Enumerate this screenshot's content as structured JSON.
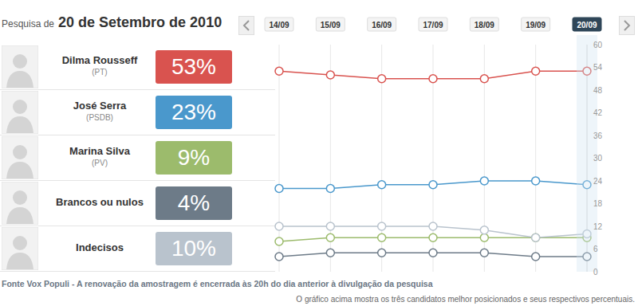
{
  "chart_data": {
    "type": "line",
    "title": "20 de Setembro de 2010",
    "annotations": [
      "Pesquisa de",
      "Fonte Vox Populi - A renovação da amostragem é encerrada às 20h do dia anterior à divulgação da pesquisa",
      "O gráfico acima mostra os três candidatos melhor posicionados e seus respectivos percentuais."
    ],
    "categories": [
      "14/09",
      "15/09",
      "16/09",
      "17/09",
      "18/09",
      "19/09",
      "20/09"
    ],
    "series": [
      {
        "name": "Dilma Rousseff",
        "party": "(PT)",
        "color": "#d9534f",
        "marker": "circle",
        "values": [
          53,
          52,
          51,
          51,
          51,
          53,
          53
        ],
        "value_labels": [
          null,
          null,
          null,
          null,
          null,
          null,
          "53%"
        ]
      },
      {
        "name": "José Serra",
        "party": "(PSDB)",
        "color": "#4a98cc",
        "marker": "circle",
        "values": [
          22,
          22,
          23,
          23,
          24,
          24,
          23
        ],
        "value_labels": [
          null,
          null,
          null,
          null,
          null,
          null,
          "23%"
        ]
      },
      {
        "name": "Marina Silva",
        "party": "(PV)",
        "color": "#9cbb6c",
        "marker": "circle",
        "values": [
          8,
          9,
          9,
          9,
          9,
          9,
          9
        ],
        "value_labels": [
          null,
          null,
          null,
          null,
          null,
          null,
          "9%"
        ]
      },
      {
        "name": "Brancos ou nulos",
        "color": "#6d7b88",
        "marker": "circle",
        "values": [
          4,
          5,
          5,
          5,
          5,
          4,
          4
        ],
        "value_labels": [
          null,
          null,
          null,
          null,
          null,
          null,
          "4%"
        ]
      },
      {
        "name": "Indecisos",
        "color": "#b9c3cd",
        "marker": "circle",
        "values": [
          12,
          12,
          12,
          12,
          11,
          9,
          10
        ],
        "value_labels": [
          null,
          null,
          null,
          null,
          null,
          null,
          "10%"
        ]
      }
    ],
    "ylim": [
      0,
      60
    ],
    "yticks": [
      0,
      6,
      12,
      18,
      24,
      30,
      36,
      42,
      48,
      54,
      60
    ],
    "grid": true
  }
}
